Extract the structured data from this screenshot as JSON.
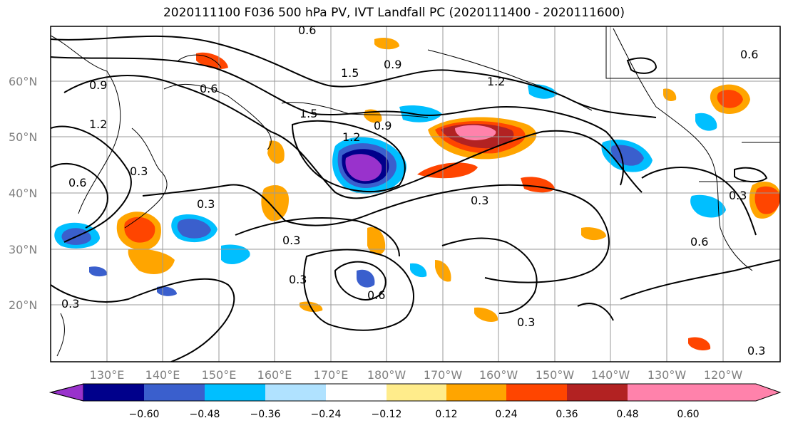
{
  "title": "2020111100 F036 500 hPa PV, IVT Landfall PC (2020111400 - 2020111600)",
  "lat_ticks": [
    "60°N",
    "50°N",
    "40°N",
    "30°N",
    "20°N"
  ],
  "lon_ticks": [
    "130°E",
    "140°E",
    "150°E",
    "160°E",
    "170°E",
    "180°W",
    "170°W",
    "160°W",
    "150°W",
    "140°W",
    "130°W",
    "120°W"
  ],
  "colorbar": {
    "colors": [
      "#9932cc",
      "#00008b",
      "#3a5fcd",
      "#00bfff",
      "#b0e2ff",
      "#ffffff",
      "#ffec8b",
      "#ffa500",
      "#ff4500",
      "#b22222",
      "#ff82ab"
    ],
    "tick_labels": [
      "−0.60",
      "−0.48",
      "−0.36",
      "−0.24",
      "−0.12",
      "0.12",
      "0.24",
      "0.36",
      "0.48",
      "0.60"
    ]
  },
  "contour_labels": [
    "0.6",
    "0.9",
    "1.5",
    "1.2",
    "0.6",
    "0.9",
    "1.2",
    "1.5",
    "0.9",
    "1.2",
    "0.3",
    "0.6",
    "0.3",
    "0.3",
    "0.3",
    "0.3",
    "0.6",
    "0.3",
    "0.3",
    "0.6",
    "0.3",
    "0.6",
    "0.3"
  ]
}
